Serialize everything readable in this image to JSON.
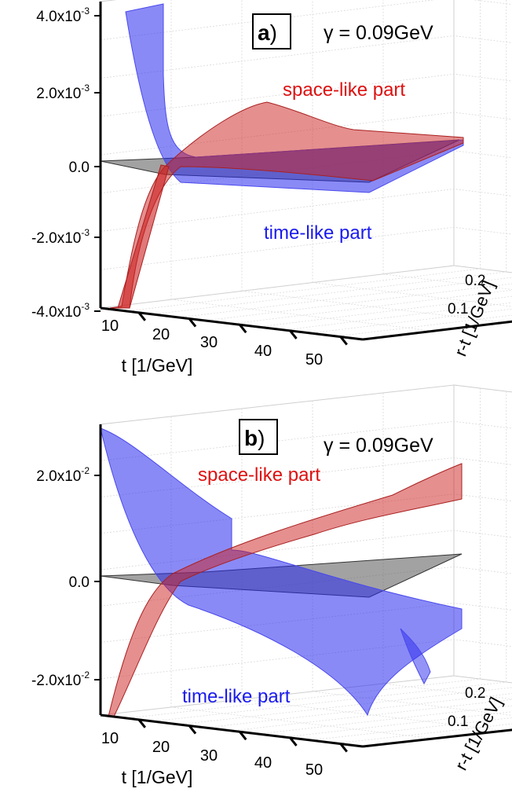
{
  "chart_data": [
    {
      "type": "surface3d",
      "panel_label": "a)",
      "parameter": "γ = 0.09GeV",
      "xlabel": "t [1/GeV]",
      "ylabel": "r-t [1/GeV]",
      "zlabel": "",
      "x_ticks": [
        "10",
        "20",
        "30",
        "40",
        "50"
      ],
      "y_ticks": [
        "0.1",
        "0.2"
      ],
      "z_ticks": [
        {
          "mant": "4.0x10",
          "exp": "-3",
          "value": 0.004
        },
        {
          "mant": "2.0x10",
          "exp": "-3",
          "value": 0.002
        },
        {
          "mant": "0.0",
          "exp": "",
          "value": 0
        },
        {
          "mant": "-2.0x10",
          "exp": "-3",
          "value": -0.002
        },
        {
          "mant": "-4.0x10",
          "exp": "-3",
          "value": -0.004
        }
      ],
      "xlim": [
        5,
        55
      ],
      "ylim": [
        0,
        0.22
      ],
      "zlim": [
        -0.004,
        0.004
      ],
      "grid": true,
      "series": [
        {
          "name": "space-like part",
          "color": "#cc2020"
        },
        {
          "name": "time-like part",
          "color": "#2a2aee"
        },
        {
          "name": "",
          "color": "#555555"
        }
      ]
    },
    {
      "type": "surface3d",
      "panel_label": "b)",
      "parameter": "γ = 0.09GeV",
      "xlabel": "t [1/GeV]",
      "ylabel": "r-t [1/GeV]",
      "zlabel": "",
      "x_ticks": [
        "10",
        "20",
        "30",
        "40",
        "50"
      ],
      "y_ticks": [
        "0.1",
        "0.2"
      ],
      "z_ticks": [
        {
          "mant": "2.0x10",
          "exp": "-2",
          "value": 0.02
        },
        {
          "mant": "0.0",
          "exp": "",
          "value": 0
        },
        {
          "mant": "-2.0x10",
          "exp": "-2",
          "value": -0.02
        }
      ],
      "xlim": [
        5,
        55
      ],
      "ylim": [
        0,
        0.22
      ],
      "zlim": [
        -0.03,
        0.03
      ],
      "grid": true,
      "series": [
        {
          "name": "space-like part",
          "color": "#cc2020"
        },
        {
          "name": "time-like part",
          "color": "#2a2aee"
        },
        {
          "name": "",
          "color": "#555555"
        }
      ]
    }
  ]
}
